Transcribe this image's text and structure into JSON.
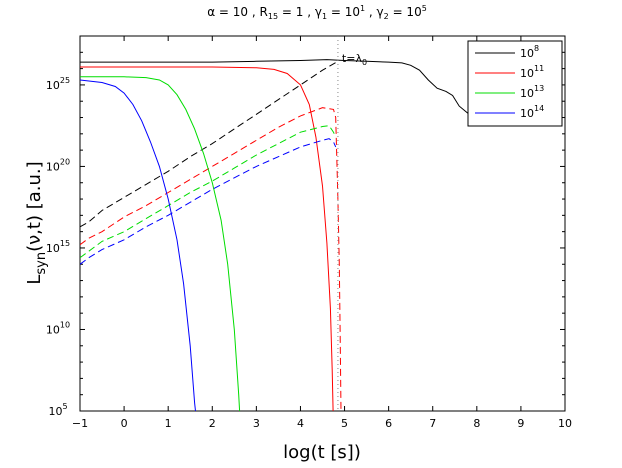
{
  "chart_data": {
    "type": "line",
    "title_parts": {
      "alpha": "α = 10",
      "r15_base": "R",
      "r15_sub": "15",
      "r15_val": " = 1",
      "gamma1_base": "γ",
      "gamma1_sub": "1",
      "gamma1_val": " = 10",
      "gamma1_exp": "1",
      "gamma2_base": "γ",
      "gamma2_sub": "2",
      "gamma2_val": " = 10",
      "gamma2_exp": "5",
      "sep": " , "
    },
    "xlabel": "log(t [s])",
    "ylabel_parts": {
      "base": "L",
      "sub": "syn",
      "rest": "(ν,t) [a.u.]"
    },
    "xlim": [
      -1,
      10
    ],
    "ylim_log10": [
      5,
      28
    ],
    "y_scale": "log",
    "x_ticks": [
      "−1",
      "0",
      "1",
      "2",
      "3",
      "4",
      "5",
      "6",
      "7",
      "8",
      "9",
      "10"
    ],
    "x_tick_values": [
      -1,
      0,
      1,
      2,
      3,
      4,
      5,
      6,
      7,
      8,
      9,
      10
    ],
    "y_ticks": [
      {
        "base": "10",
        "exp": "5",
        "log": 5
      },
      {
        "base": "10",
        "exp": "10",
        "log": 10
      },
      {
        "base": "10",
        "exp": "15",
        "log": 15
      },
      {
        "base": "10",
        "exp": "20",
        "log": 20
      },
      {
        "base": "10",
        "exp": "25",
        "log": 25
      }
    ],
    "legend_position": "top-right",
    "annotation": {
      "text_base": "t=λ",
      "text_sub": "0",
      "x": 4.85
    },
    "series": [
      {
        "name_base": "10",
        "name_exp": "8",
        "color": "#000000",
        "solid": [
          [
            -1,
            26.4
          ],
          [
            0,
            26.4
          ],
          [
            1,
            26.4
          ],
          [
            2,
            26.4
          ],
          [
            3,
            26.45
          ],
          [
            4,
            26.5
          ],
          [
            4.6,
            26.55
          ],
          [
            5,
            26.5
          ],
          [
            5.5,
            26.45
          ],
          [
            6,
            26.4
          ],
          [
            6.3,
            26.35
          ],
          [
            6.5,
            26.2
          ],
          [
            6.7,
            25.9
          ],
          [
            6.9,
            25.3
          ],
          [
            7.1,
            24.8
          ],
          [
            7.3,
            24.6
          ],
          [
            7.45,
            24.35
          ],
          [
            7.6,
            23.7
          ],
          [
            7.8,
            23.25
          ]
        ],
        "dashed": [
          [
            -1,
            16.3
          ],
          [
            -0.8,
            16.6
          ],
          [
            -0.5,
            17.3
          ],
          [
            0,
            18.1
          ],
          [
            0.5,
            18.9
          ],
          [
            1,
            19.7
          ],
          [
            1.5,
            20.6
          ],
          [
            2,
            21.4
          ],
          [
            2.5,
            22.3
          ],
          [
            3,
            23.2
          ],
          [
            3.5,
            24.1
          ],
          [
            4,
            25.0
          ],
          [
            4.5,
            25.9
          ],
          [
            4.85,
            26.45
          ]
        ]
      },
      {
        "name_base": "10",
        "name_exp": "11",
        "color": "#ff0000",
        "solid": [
          [
            -1,
            26.1
          ],
          [
            0,
            26.1
          ],
          [
            1,
            26.1
          ],
          [
            2,
            26.1
          ],
          [
            3,
            26.05
          ],
          [
            3.4,
            25.95
          ],
          [
            3.7,
            25.7
          ],
          [
            4,
            25.0
          ],
          [
            4.2,
            23.8
          ],
          [
            4.35,
            21.8
          ],
          [
            4.5,
            18.8
          ],
          [
            4.6,
            15.3
          ],
          [
            4.68,
            11.3
          ],
          [
            4.72,
            7.5
          ],
          [
            4.74,
            5
          ]
        ],
        "dashed": [
          [
            -1,
            15.2
          ],
          [
            -0.8,
            15.6
          ],
          [
            -0.5,
            16.0
          ],
          [
            0,
            16.9
          ],
          [
            0.5,
            17.6
          ],
          [
            1,
            18.4
          ],
          [
            1.5,
            19.2
          ],
          [
            2,
            20.0
          ],
          [
            2.5,
            20.8
          ],
          [
            3,
            21.6
          ],
          [
            3.5,
            22.4
          ],
          [
            4,
            23.1
          ],
          [
            4.5,
            23.6
          ],
          [
            4.75,
            23.5
          ],
          [
            4.8,
            23.0
          ],
          [
            4.85,
            18.0
          ],
          [
            4.88,
            14.0
          ],
          [
            4.9,
            10.0
          ],
          [
            4.92,
            5
          ]
        ]
      },
      {
        "name_base": "10",
        "name_exp": "13",
        "color": "#00dd00",
        "solid": [
          [
            -1,
            25.5
          ],
          [
            -0.5,
            25.5
          ],
          [
            0,
            25.5
          ],
          [
            0.5,
            25.45
          ],
          [
            0.8,
            25.3
          ],
          [
            1,
            25.0
          ],
          [
            1.2,
            24.4
          ],
          [
            1.4,
            23.5
          ],
          [
            1.6,
            22.3
          ],
          [
            1.8,
            20.8
          ],
          [
            2,
            19.0
          ],
          [
            2.2,
            16.7
          ],
          [
            2.35,
            14.0
          ],
          [
            2.5,
            10.0
          ],
          [
            2.6,
            6.0
          ],
          [
            2.62,
            5
          ]
        ],
        "dashed": [
          [
            -1,
            14.4
          ],
          [
            -0.8,
            14.8
          ],
          [
            -0.5,
            15.4
          ],
          [
            0,
            16.0
          ],
          [
            0.5,
            16.8
          ],
          [
            1,
            17.6
          ],
          [
            1.5,
            18.4
          ],
          [
            2,
            19.1
          ],
          [
            2.5,
            19.9
          ],
          [
            3,
            20.7
          ],
          [
            3.5,
            21.4
          ],
          [
            4,
            22.1
          ],
          [
            4.5,
            22.45
          ],
          [
            4.65,
            22.5
          ],
          [
            4.75,
            22.1
          ],
          [
            4.8,
            21.8
          ]
        ]
      },
      {
        "name_base": "10",
        "name_exp": "14",
        "color": "#0000ff",
        "solid": [
          [
            -1,
            25.3
          ],
          [
            -0.5,
            25.15
          ],
          [
            -0.2,
            24.9
          ],
          [
            0,
            24.5
          ],
          [
            0.2,
            23.8
          ],
          [
            0.4,
            22.8
          ],
          [
            0.6,
            21.5
          ],
          [
            0.8,
            20.0
          ],
          [
            1,
            18.0
          ],
          [
            1.2,
            15.5
          ],
          [
            1.35,
            12.8
          ],
          [
            1.5,
            9.0
          ],
          [
            1.6,
            5.5
          ],
          [
            1.62,
            5
          ]
        ],
        "dashed": [
          [
            -1,
            14.0
          ],
          [
            -0.8,
            14.4
          ],
          [
            -0.5,
            14.9
          ],
          [
            0,
            15.5
          ],
          [
            0.5,
            16.3
          ],
          [
            1,
            17.0
          ],
          [
            1.5,
            17.8
          ],
          [
            2,
            18.6
          ],
          [
            2.5,
            19.3
          ],
          [
            3,
            20.0
          ],
          [
            3.5,
            20.6
          ],
          [
            4,
            21.2
          ],
          [
            4.5,
            21.6
          ],
          [
            4.65,
            21.7
          ],
          [
            4.75,
            21.5
          ],
          [
            4.8,
            21.2
          ]
        ]
      }
    ]
  }
}
